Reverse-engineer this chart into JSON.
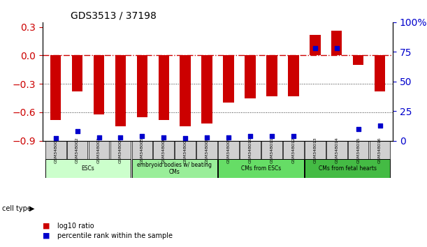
{
  "title": "GDS3513 / 37198",
  "samples": [
    "GSM348001",
    "GSM348002",
    "GSM348003",
    "GSM348004",
    "GSM348005",
    "GSM348006",
    "GSM348007",
    "GSM348008",
    "GSM348009",
    "GSM348010",
    "GSM348011",
    "GSM348012",
    "GSM348013",
    "GSM348014",
    "GSM348015",
    "GSM348016"
  ],
  "log10_ratio": [
    -0.68,
    -0.38,
    -0.62,
    -0.75,
    -0.65,
    -0.68,
    -0.75,
    -0.72,
    -0.5,
    -0.45,
    -0.43,
    -0.43,
    0.22,
    0.26,
    -0.1,
    -0.38
  ],
  "percentile_rank": [
    2,
    8,
    3,
    3,
    4,
    3,
    2,
    3,
    3,
    4,
    4,
    4,
    78,
    78,
    10,
    13
  ],
  "cell_type_groups": [
    {
      "label": "ESCs",
      "start": 0,
      "end": 3,
      "color": "#ccffcc"
    },
    {
      "label": "embryoid bodies w/ beating\nCMs",
      "start": 4,
      "end": 7,
      "color": "#99ff99"
    },
    {
      "label": "CMs from ESCs",
      "start": 8,
      "end": 11,
      "color": "#66ff66"
    },
    {
      "label": "CMs from fetal hearts",
      "start": 12,
      "end": 15,
      "color": "#33cc33"
    }
  ],
  "ylim_left": [
    -0.9,
    0.35
  ],
  "ylim_right": [
    0,
    100
  ],
  "yticks_left": [
    -0.9,
    -0.6,
    -0.3,
    0.0,
    0.3
  ],
  "yticks_right": [
    0,
    25,
    50,
    75,
    100
  ],
  "bar_color": "#cc0000",
  "dot_color": "#0000cc",
  "hline_color": "#cc0000",
  "dotted_color": "#333333",
  "left_label_color": "#cc0000",
  "right_label_color": "#0000cc"
}
